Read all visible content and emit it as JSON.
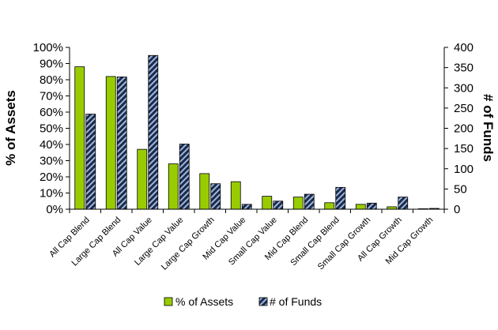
{
  "chart_data": {
    "type": "bar",
    "title": "",
    "categories": [
      "All Cap Blend",
      "Large Cap Blend",
      "All Cap Value",
      "Large Cap Value",
      "Large Cap Growth",
      "Mid Cap Value",
      "Small Cap Value",
      "Mid Cap Blend",
      "Small Cap Blend",
      "Small Cap Growth",
      "All Cap Growth",
      "Mid Cap Growth"
    ],
    "series": [
      {
        "name": "% of Assets",
        "axis": "left",
        "color": "#99cc00",
        "pattern": "solid",
        "values": [
          88,
          82,
          37,
          28,
          22,
          17,
          8,
          7.5,
          4,
          3,
          1.5,
          0.3
        ]
      },
      {
        "name": "# of Funds",
        "axis": "right",
        "color": "#1f2a44",
        "pattern": "navy-with-light-blue-diagonal-stripes",
        "values": [
          235,
          327,
          380,
          161,
          63,
          12,
          20,
          37,
          54,
          15,
          30,
          2
        ]
      }
    ],
    "ylabel": "% of Assets",
    "ylim": [
      0,
      100
    ],
    "yticks": [
      "0%",
      "10%",
      "20%",
      "30%",
      "40%",
      "50%",
      "60%",
      "70%",
      "80%",
      "90%",
      "100%"
    ],
    "y2label": "# of Funds",
    "y2lim": [
      0,
      400
    ],
    "y2ticks": [
      "0",
      "50",
      "100",
      "150",
      "200",
      "250",
      "300",
      "350",
      "400"
    ],
    "grid": false,
    "legend": {
      "position": "bottom-center",
      "entries": [
        "% of Assets",
        "# of Funds"
      ]
    }
  }
}
